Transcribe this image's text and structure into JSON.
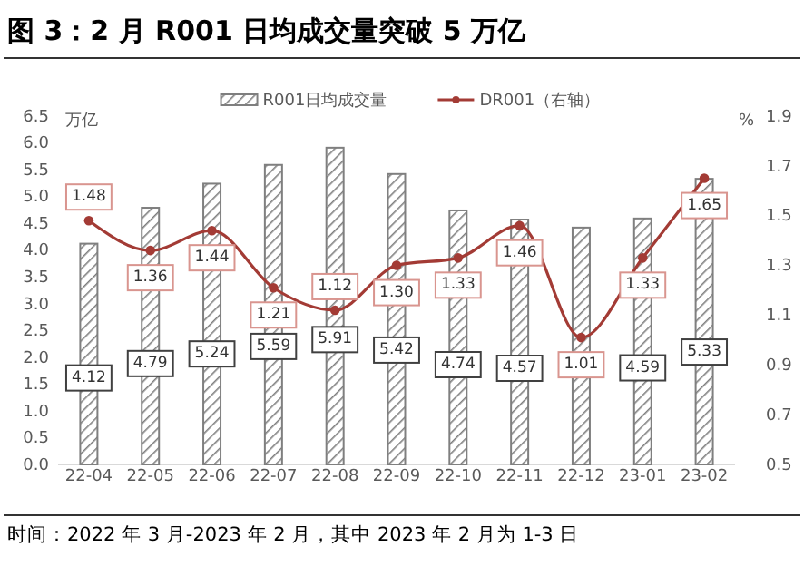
{
  "chart_data": {
    "type": "bar",
    "title": "图 3：2 月 R001 日均成交量突破 5 万亿",
    "categories": [
      "22-04",
      "22-05",
      "22-06",
      "22-07",
      "22-08",
      "22-09",
      "22-10",
      "22-11",
      "22-12",
      "23-01",
      "23-02"
    ],
    "series": [
      {
        "name": "R001日均成交量",
        "color": "#7f7f7f",
        "values": [
          4.12,
          4.79,
          5.24,
          5.59,
          5.91,
          5.42,
          4.74,
          4.57,
          4.42,
          4.59,
          5.33
        ],
        "value_labels": [
          "4.12",
          "4.79",
          "5.24",
          "5.59",
          "5.91",
          "5.42",
          "4.74",
          "4.57",
          null,
          "4.59",
          "5.33"
        ]
      },
      {
        "name": "DR001（右轴）",
        "type": "line",
        "axis": "y2",
        "color": "#a33b35",
        "values": [
          1.48,
          1.36,
          1.44,
          1.21,
          1.12,
          1.3,
          1.33,
          1.46,
          1.01,
          1.33,
          1.65
        ],
        "value_labels": [
          "1.48",
          "1.36",
          "1.44",
          "1.21",
          "1.12",
          "1.30",
          "1.33",
          "1.46",
          "1.01",
          "1.33",
          "1.65"
        ]
      }
    ],
    "ylabel": "万亿",
    "y2label": "%",
    "ylim": [
      0,
      6.5
    ],
    "yticks": [
      {
        "value": 0,
        "label": "0.0"
      },
      0.5,
      {
        "value": 1,
        "label": "1.0"
      },
      1.5,
      {
        "value": 2,
        "label": "2.0"
      },
      2.5,
      {
        "value": 3,
        "label": "3.0"
      },
      3.5,
      {
        "value": 4,
        "label": "4.0"
      },
      4.5,
      {
        "value": 5,
        "label": "5.0"
      },
      5.5,
      {
        "value": 6,
        "label": "6.0"
      },
      6.5
    ],
    "y2lim": [
      0.5,
      1.9
    ],
    "y2ticks": [
      0.5,
      0.7,
      0.9,
      1.1,
      1.3,
      1.5,
      1.7,
      1.9
    ],
    "legend": "top",
    "grid": false,
    "marker": "circle",
    "line_style": "solid",
    "annotations": [
      "时间：2022 年 3 月-2023 年 2 月，其中 2023 年 2 月为 1-3 日"
    ]
  }
}
